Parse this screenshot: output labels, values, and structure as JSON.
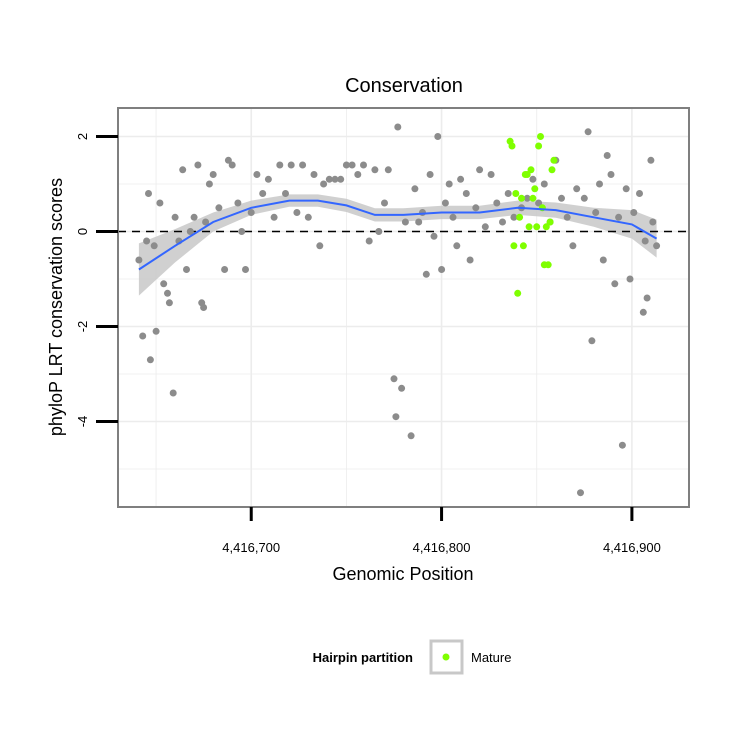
{
  "chart_data": {
    "type": "scatter",
    "title": "Conservation",
    "xlabel": "Genomic Position",
    "ylabel": "phyloP LRT conservation scores",
    "xlim": [
      4416630,
      4416930
    ],
    "ylim": [
      -5.8,
      2.6
    ],
    "x_ticks": [
      4416700,
      4416800,
      4416900
    ],
    "x_tick_labels": [
      "4,416,700",
      "4,416,800",
      "4,416,900"
    ],
    "y_ticks": [
      -4,
      -2,
      0,
      2
    ],
    "y_tick_labels": [
      "-4",
      "-2",
      "0",
      "2"
    ],
    "reference_line": {
      "y": 0,
      "style": "dashed"
    },
    "grid": true,
    "legend": {
      "title": "Hairpin partition",
      "placement": "bottom",
      "entries": [
        "Mature"
      ]
    },
    "colors": {
      "points": "#8c8c8c",
      "mature": "#7fff00",
      "smooth": "#3366ff",
      "band": "#c8c8c8",
      "grid": "#ececec",
      "border": "#7f7f7f"
    },
    "series": [
      {
        "name": "",
        "color": "#8c8c8c",
        "points": [
          [
            4416641,
            -0.6
          ],
          [
            4416643,
            -2.2
          ],
          [
            4416645,
            -0.2
          ],
          [
            4416646,
            0.8
          ],
          [
            4416647,
            -2.7
          ],
          [
            4416649,
            -0.3
          ],
          [
            4416650,
            -2.1
          ],
          [
            4416652,
            0.6
          ],
          [
            4416654,
            -1.1
          ],
          [
            4416656,
            -1.3
          ],
          [
            4416657,
            -1.5
          ],
          [
            4416659,
            -3.4
          ],
          [
            4416660,
            0.3
          ],
          [
            4416662,
            -0.2
          ],
          [
            4416664,
            1.3
          ],
          [
            4416666,
            -0.8
          ],
          [
            4416668,
            0.0
          ],
          [
            4416670,
            0.3
          ],
          [
            4416672,
            1.4
          ],
          [
            4416674,
            -1.5
          ],
          [
            4416675,
            -1.6
          ],
          [
            4416676,
            0.2
          ],
          [
            4416678,
            1.0
          ],
          [
            4416680,
            1.2
          ],
          [
            4416683,
            0.5
          ],
          [
            4416686,
            -0.8
          ],
          [
            4416688,
            1.5
          ],
          [
            4416690,
            1.4
          ],
          [
            4416693,
            0.6
          ],
          [
            4416695,
            0.0
          ],
          [
            4416697,
            -0.8
          ],
          [
            4416700,
            0.4
          ],
          [
            4416703,
            1.2
          ],
          [
            4416706,
            0.8
          ],
          [
            4416709,
            1.1
          ],
          [
            4416712,
            0.3
          ],
          [
            4416715,
            1.4
          ],
          [
            4416718,
            0.8
          ],
          [
            4416721,
            1.4
          ],
          [
            4416724,
            0.4
          ],
          [
            4416727,
            1.4
          ],
          [
            4416730,
            0.3
          ],
          [
            4416733,
            1.2
          ],
          [
            4416736,
            -0.3
          ],
          [
            4416738,
            1.0
          ],
          [
            4416741,
            1.1
          ],
          [
            4416744,
            1.1
          ],
          [
            4416747,
            1.1
          ],
          [
            4416750,
            1.4
          ],
          [
            4416753,
            1.4
          ],
          [
            4416756,
            1.2
          ],
          [
            4416759,
            1.4
          ],
          [
            4416762,
            -0.2
          ],
          [
            4416765,
            1.3
          ],
          [
            4416767,
            0.0
          ],
          [
            4416770,
            0.6
          ],
          [
            4416772,
            1.3
          ],
          [
            4416775,
            -3.1
          ],
          [
            4416776,
            -3.9
          ],
          [
            4416777,
            2.2
          ],
          [
            4416779,
            -3.3
          ],
          [
            4416781,
            0.2
          ],
          [
            4416784,
            -4.3
          ],
          [
            4416786,
            0.9
          ],
          [
            4416788,
            0.2
          ],
          [
            4416790,
            0.4
          ],
          [
            4416792,
            -0.9
          ],
          [
            4416794,
            1.2
          ],
          [
            4416796,
            -0.1
          ],
          [
            4416798,
            2.0
          ],
          [
            4416800,
            -0.8
          ],
          [
            4416802,
            0.6
          ],
          [
            4416804,
            1.0
          ],
          [
            4416806,
            0.3
          ],
          [
            4416808,
            -0.3
          ],
          [
            4416810,
            1.1
          ],
          [
            4416813,
            0.8
          ],
          [
            4416815,
            -0.6
          ],
          [
            4416818,
            0.5
          ],
          [
            4416820,
            1.3
          ],
          [
            4416823,
            0.1
          ],
          [
            4416826,
            1.2
          ],
          [
            4416829,
            0.6
          ],
          [
            4416832,
            0.2
          ],
          [
            4416835,
            0.8
          ],
          [
            4416838,
            0.3
          ],
          [
            4416842,
            0.5
          ],
          [
            4416845,
            0.7
          ],
          [
            4416848,
            1.1
          ],
          [
            4416851,
            0.6
          ],
          [
            4416854,
            1.0
          ],
          [
            4416857,
            0.2
          ],
          [
            4416860,
            1.5
          ],
          [
            4416863,
            0.7
          ],
          [
            4416866,
            0.3
          ],
          [
            4416869,
            -0.3
          ],
          [
            4416871,
            0.9
          ],
          [
            4416873,
            -5.5
          ],
          [
            4416875,
            0.7
          ],
          [
            4416877,
            2.1
          ],
          [
            4416879,
            -2.3
          ],
          [
            4416881,
            0.4
          ],
          [
            4416883,
            1.0
          ],
          [
            4416885,
            -0.6
          ],
          [
            4416887,
            1.6
          ],
          [
            4416889,
            1.2
          ],
          [
            4416891,
            -1.1
          ],
          [
            4416893,
            0.3
          ],
          [
            4416895,
            -4.5
          ],
          [
            4416897,
            0.9
          ],
          [
            4416899,
            -1.0
          ],
          [
            4416901,
            0.4
          ],
          [
            4416904,
            0.8
          ],
          [
            4416906,
            -1.7
          ],
          [
            4416907,
            -0.2
          ],
          [
            4416908,
            -1.4
          ],
          [
            4416910,
            1.5
          ],
          [
            4416911,
            0.2
          ],
          [
            4416913,
            -0.3
          ]
        ]
      },
      {
        "name": "Mature",
        "color": "#7fff00",
        "points": [
          [
            4416836,
            1.9
          ],
          [
            4416837,
            1.8
          ],
          [
            4416838,
            -0.3
          ],
          [
            4416839,
            0.8
          ],
          [
            4416840,
            -1.3
          ],
          [
            4416841,
            0.3
          ],
          [
            4416842,
            0.7
          ],
          [
            4416843,
            -0.3
          ],
          [
            4416844,
            1.2
          ],
          [
            4416845,
            1.2
          ],
          [
            4416846,
            0.1
          ],
          [
            4416847,
            1.3
          ],
          [
            4416848,
            0.7
          ],
          [
            4416849,
            0.9
          ],
          [
            4416850,
            0.1
          ],
          [
            4416851,
            1.8
          ],
          [
            4416852,
            2.0
          ],
          [
            4416853,
            0.5
          ],
          [
            4416854,
            -0.7
          ],
          [
            4416855,
            0.1
          ],
          [
            4416856,
            -0.7
          ],
          [
            4416857,
            0.2
          ],
          [
            4416858,
            1.3
          ],
          [
            4416859,
            1.5
          ]
        ]
      }
    ],
    "smooth": {
      "x": [
        4416641,
        4416660,
        4416680,
        4416700,
        4416720,
        4416735,
        4416750,
        4416765,
        4416780,
        4416800,
        4416820,
        4416840,
        4416860,
        4416880,
        4416900,
        4416913
      ],
      "y": [
        -0.8,
        -0.3,
        0.2,
        0.5,
        0.65,
        0.65,
        0.55,
        0.35,
        0.35,
        0.4,
        0.4,
        0.5,
        0.45,
        0.3,
        0.15,
        -0.15
      ],
      "se": [
        0.55,
        0.35,
        0.2,
        0.15,
        0.13,
        0.13,
        0.14,
        0.14,
        0.14,
        0.14,
        0.14,
        0.15,
        0.16,
        0.2,
        0.3,
        0.4
      ]
    }
  }
}
